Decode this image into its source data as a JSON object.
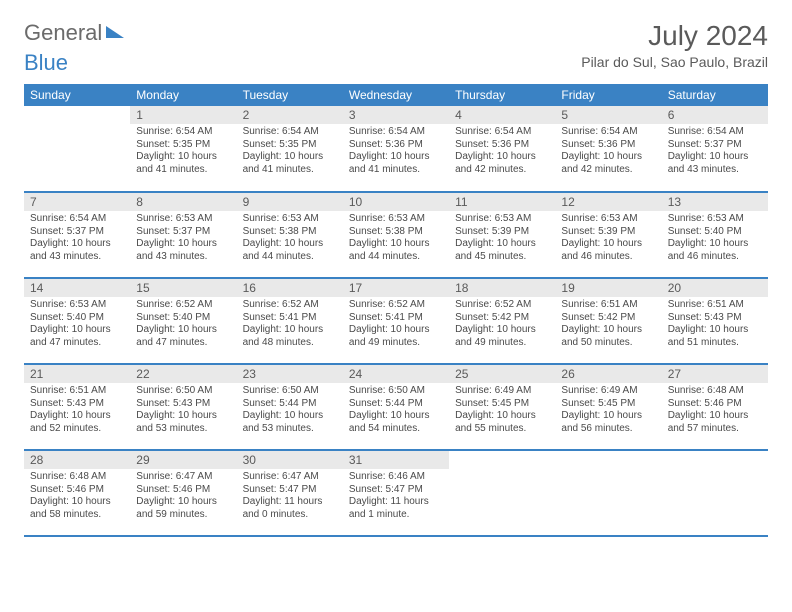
{
  "logo": {
    "part1": "General",
    "part2": "Blue"
  },
  "header": {
    "month_title": "July 2024",
    "location": "Pilar do Sul, Sao Paulo, Brazil"
  },
  "colors": {
    "accent": "#3a82c4",
    "header_bg": "#3a82c4",
    "daynum_bg": "#e9e9e9",
    "text": "#4a4a4a",
    "title_text": "#5a5a5a",
    "background": "#ffffff"
  },
  "typography": {
    "month_title_fontsize": 28,
    "location_fontsize": 14,
    "dayheader_fontsize": 12,
    "daynum_fontsize": 12,
    "body_fontsize": 10
  },
  "calendar": {
    "type": "table",
    "columns": [
      "Sunday",
      "Monday",
      "Tuesday",
      "Wednesday",
      "Thursday",
      "Friday",
      "Saturday"
    ],
    "weeks": [
      [
        {
          "day": "",
          "sunrise": "",
          "sunset": "",
          "daylight": ""
        },
        {
          "day": "1",
          "sunrise": "Sunrise: 6:54 AM",
          "sunset": "Sunset: 5:35 PM",
          "daylight": "Daylight: 10 hours and 41 minutes."
        },
        {
          "day": "2",
          "sunrise": "Sunrise: 6:54 AM",
          "sunset": "Sunset: 5:35 PM",
          "daylight": "Daylight: 10 hours and 41 minutes."
        },
        {
          "day": "3",
          "sunrise": "Sunrise: 6:54 AM",
          "sunset": "Sunset: 5:36 PM",
          "daylight": "Daylight: 10 hours and 41 minutes."
        },
        {
          "day": "4",
          "sunrise": "Sunrise: 6:54 AM",
          "sunset": "Sunset: 5:36 PM",
          "daylight": "Daylight: 10 hours and 42 minutes."
        },
        {
          "day": "5",
          "sunrise": "Sunrise: 6:54 AM",
          "sunset": "Sunset: 5:36 PM",
          "daylight": "Daylight: 10 hours and 42 minutes."
        },
        {
          "day": "6",
          "sunrise": "Sunrise: 6:54 AM",
          "sunset": "Sunset: 5:37 PM",
          "daylight": "Daylight: 10 hours and 43 minutes."
        }
      ],
      [
        {
          "day": "7",
          "sunrise": "Sunrise: 6:54 AM",
          "sunset": "Sunset: 5:37 PM",
          "daylight": "Daylight: 10 hours and 43 minutes."
        },
        {
          "day": "8",
          "sunrise": "Sunrise: 6:53 AM",
          "sunset": "Sunset: 5:37 PM",
          "daylight": "Daylight: 10 hours and 43 minutes."
        },
        {
          "day": "9",
          "sunrise": "Sunrise: 6:53 AM",
          "sunset": "Sunset: 5:38 PM",
          "daylight": "Daylight: 10 hours and 44 minutes."
        },
        {
          "day": "10",
          "sunrise": "Sunrise: 6:53 AM",
          "sunset": "Sunset: 5:38 PM",
          "daylight": "Daylight: 10 hours and 44 minutes."
        },
        {
          "day": "11",
          "sunrise": "Sunrise: 6:53 AM",
          "sunset": "Sunset: 5:39 PM",
          "daylight": "Daylight: 10 hours and 45 minutes."
        },
        {
          "day": "12",
          "sunrise": "Sunrise: 6:53 AM",
          "sunset": "Sunset: 5:39 PM",
          "daylight": "Daylight: 10 hours and 46 minutes."
        },
        {
          "day": "13",
          "sunrise": "Sunrise: 6:53 AM",
          "sunset": "Sunset: 5:40 PM",
          "daylight": "Daylight: 10 hours and 46 minutes."
        }
      ],
      [
        {
          "day": "14",
          "sunrise": "Sunrise: 6:53 AM",
          "sunset": "Sunset: 5:40 PM",
          "daylight": "Daylight: 10 hours and 47 minutes."
        },
        {
          "day": "15",
          "sunrise": "Sunrise: 6:52 AM",
          "sunset": "Sunset: 5:40 PM",
          "daylight": "Daylight: 10 hours and 47 minutes."
        },
        {
          "day": "16",
          "sunrise": "Sunrise: 6:52 AM",
          "sunset": "Sunset: 5:41 PM",
          "daylight": "Daylight: 10 hours and 48 minutes."
        },
        {
          "day": "17",
          "sunrise": "Sunrise: 6:52 AM",
          "sunset": "Sunset: 5:41 PM",
          "daylight": "Daylight: 10 hours and 49 minutes."
        },
        {
          "day": "18",
          "sunrise": "Sunrise: 6:52 AM",
          "sunset": "Sunset: 5:42 PM",
          "daylight": "Daylight: 10 hours and 49 minutes."
        },
        {
          "day": "19",
          "sunrise": "Sunrise: 6:51 AM",
          "sunset": "Sunset: 5:42 PM",
          "daylight": "Daylight: 10 hours and 50 minutes."
        },
        {
          "day": "20",
          "sunrise": "Sunrise: 6:51 AM",
          "sunset": "Sunset: 5:43 PM",
          "daylight": "Daylight: 10 hours and 51 minutes."
        }
      ],
      [
        {
          "day": "21",
          "sunrise": "Sunrise: 6:51 AM",
          "sunset": "Sunset: 5:43 PM",
          "daylight": "Daylight: 10 hours and 52 minutes."
        },
        {
          "day": "22",
          "sunrise": "Sunrise: 6:50 AM",
          "sunset": "Sunset: 5:43 PM",
          "daylight": "Daylight: 10 hours and 53 minutes."
        },
        {
          "day": "23",
          "sunrise": "Sunrise: 6:50 AM",
          "sunset": "Sunset: 5:44 PM",
          "daylight": "Daylight: 10 hours and 53 minutes."
        },
        {
          "day": "24",
          "sunrise": "Sunrise: 6:50 AM",
          "sunset": "Sunset: 5:44 PM",
          "daylight": "Daylight: 10 hours and 54 minutes."
        },
        {
          "day": "25",
          "sunrise": "Sunrise: 6:49 AM",
          "sunset": "Sunset: 5:45 PM",
          "daylight": "Daylight: 10 hours and 55 minutes."
        },
        {
          "day": "26",
          "sunrise": "Sunrise: 6:49 AM",
          "sunset": "Sunset: 5:45 PM",
          "daylight": "Daylight: 10 hours and 56 minutes."
        },
        {
          "day": "27",
          "sunrise": "Sunrise: 6:48 AM",
          "sunset": "Sunset: 5:46 PM",
          "daylight": "Daylight: 10 hours and 57 minutes."
        }
      ],
      [
        {
          "day": "28",
          "sunrise": "Sunrise: 6:48 AM",
          "sunset": "Sunset: 5:46 PM",
          "daylight": "Daylight: 10 hours and 58 minutes."
        },
        {
          "day": "29",
          "sunrise": "Sunrise: 6:47 AM",
          "sunset": "Sunset: 5:46 PM",
          "daylight": "Daylight: 10 hours and 59 minutes."
        },
        {
          "day": "30",
          "sunrise": "Sunrise: 6:47 AM",
          "sunset": "Sunset: 5:47 PM",
          "daylight": "Daylight: 11 hours and 0 minutes."
        },
        {
          "day": "31",
          "sunrise": "Sunrise: 6:46 AM",
          "sunset": "Sunset: 5:47 PM",
          "daylight": "Daylight: 11 hours and 1 minute."
        },
        {
          "day": "",
          "sunrise": "",
          "sunset": "",
          "daylight": ""
        },
        {
          "day": "",
          "sunrise": "",
          "sunset": "",
          "daylight": ""
        },
        {
          "day": "",
          "sunrise": "",
          "sunset": "",
          "daylight": ""
        }
      ]
    ]
  }
}
